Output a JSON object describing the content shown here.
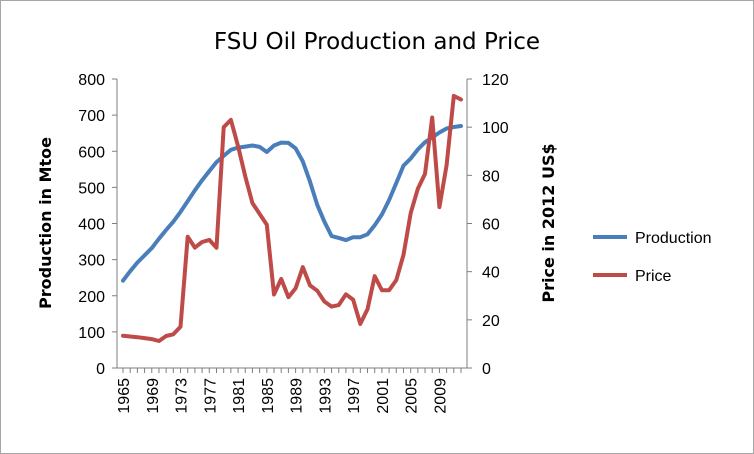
{
  "chart_data": {
    "type": "line",
    "title": "FSU Oil Production and Price",
    "xlabel": "",
    "ylabel": "Production in Mtoe",
    "y2label": "Price in 2012 US$",
    "ylim": [
      0,
      800
    ],
    "y2lim": [
      0,
      120
    ],
    "yticks": [
      "0",
      "100",
      "200",
      "300",
      "400",
      "500",
      "600",
      "700",
      "800"
    ],
    "y2ticks": [
      "0",
      "20",
      "40",
      "60",
      "80",
      "100",
      "120"
    ],
    "xticks": [
      "1965",
      "1969",
      "1973",
      "1977",
      "1981",
      "1985",
      "1989",
      "1993",
      "1997",
      "2001",
      "2005",
      "2009"
    ],
    "x": [
      1965,
      1966,
      1967,
      1968,
      1969,
      1970,
      1971,
      1972,
      1973,
      1974,
      1975,
      1976,
      1977,
      1978,
      1979,
      1980,
      1981,
      1982,
      1983,
      1984,
      1985,
      1986,
      1987,
      1988,
      1989,
      1990,
      1991,
      1992,
      1993,
      1994,
      1995,
      1996,
      1997,
      1998,
      1999,
      2000,
      2001,
      2002,
      2003,
      2004,
      2005,
      2006,
      2007,
      2008,
      2009,
      2010,
      2011,
      2012
    ],
    "grid": false,
    "legend": "right",
    "series": [
      {
        "name": "Production",
        "axis": "left",
        "color": "#4a7ebb",
        "values": [
          242,
          268,
          292,
          312,
          332,
          358,
          382,
          405,
          432,
          462,
          492,
          520,
          545,
          570,
          587,
          604,
          610,
          613,
          616,
          612,
          598,
          616,
          624,
          623,
          608,
          572,
          516,
          452,
          405,
          365,
          360,
          354,
          362,
          362,
          370,
          395,
          425,
          465,
          512,
          560,
          580,
          605,
          625,
          638,
          652,
          663,
          667,
          670
        ]
      },
      {
        "name": "Price",
        "axis": "right",
        "color": "#be4b48",
        "values": [
          13.4,
          13.1,
          12.8,
          12.4,
          12.0,
          11.2,
          13.3,
          14.0,
          17.1,
          54.5,
          50.0,
          52.3,
          53.2,
          49.9,
          100.0,
          103.0,
          92.0,
          79.5,
          68.5,
          64.0,
          59.5,
          30.5,
          37.0,
          29.4,
          33.1,
          41.9,
          34.3,
          32.1,
          27.6,
          25.5,
          26.1,
          30.6,
          28.4,
          18.3,
          24.4,
          38.1,
          32.3,
          32.3,
          36.5,
          47.0,
          64.3,
          74.5,
          80.6,
          104.0,
          66.8,
          84.2,
          113.0,
          111.5
        ]
      }
    ]
  }
}
